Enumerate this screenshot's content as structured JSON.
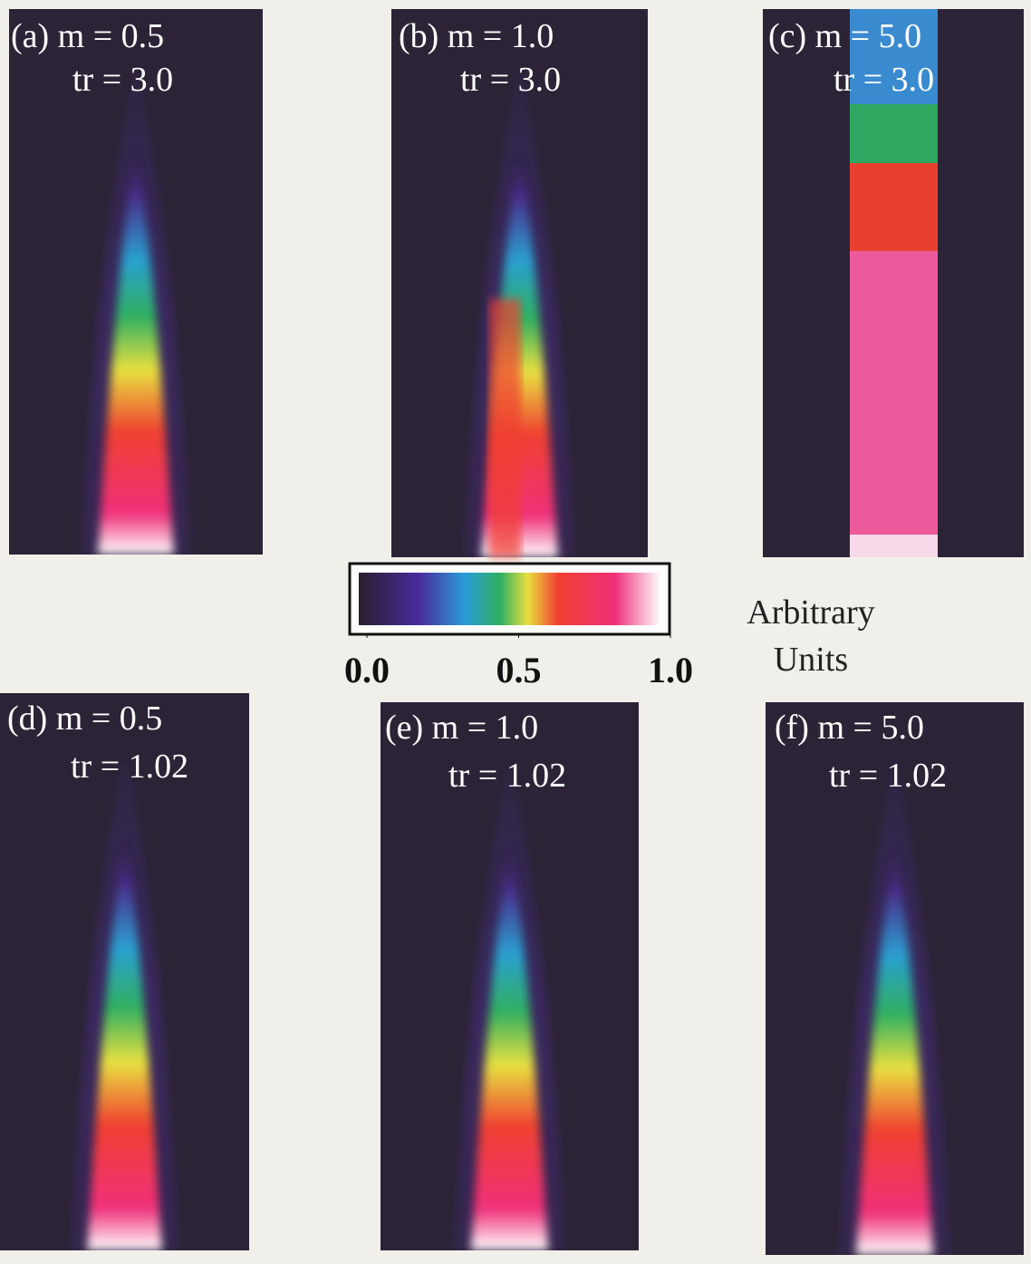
{
  "panels": [
    {
      "line1": "(a) m = 0.5",
      "line2": "tr = 3.0"
    },
    {
      "line1": "(b) m = 1.0",
      "line2": "tr = 3.0"
    },
    {
      "line1": "(c) m = 5.0",
      "line2": "tr = 3.0"
    },
    {
      "line1": "(d) m = 0.5",
      "line2": "tr = 1.02"
    },
    {
      "line1": "(e) m = 1.0",
      "line2": "tr = 1.02"
    },
    {
      "line1": "(f) m = 5.0",
      "line2": "tr = 1.02"
    }
  ],
  "colorbar": {
    "ticks": [
      {
        "value": 0,
        "label": "0.0"
      },
      {
        "value": 0.5,
        "label": "0.5"
      },
      {
        "value": 1,
        "label": "1.0"
      }
    ],
    "range": [
      0,
      1
    ],
    "label": [
      "Arbitrary",
      "Units"
    ]
  }
}
